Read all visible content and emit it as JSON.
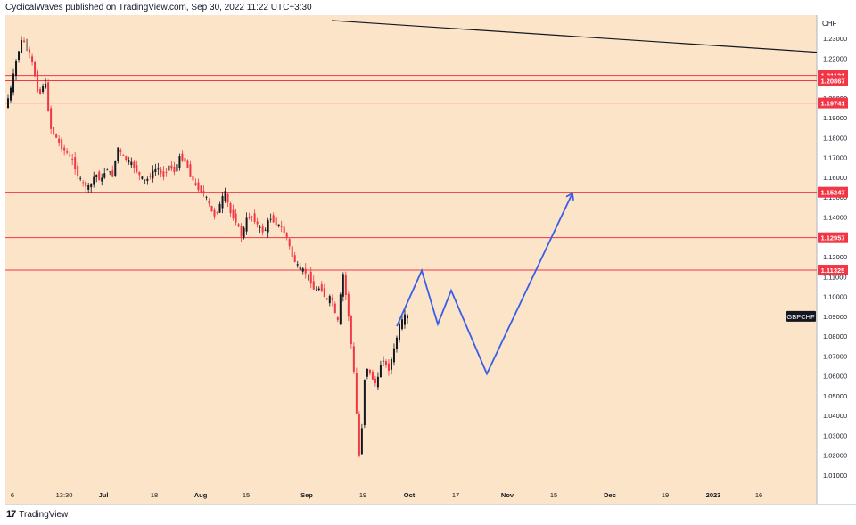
{
  "header": {
    "published_text": "CyclicalWaves published on TradingView.com, Sep 30, 2022 11:22 UTC+3:30"
  },
  "footer": {
    "brand": "TradingView",
    "logo_glyph": "17"
  },
  "colors": {
    "plot_background": "#fbe4c8",
    "level_line": "#f23645",
    "candle_up": "#131722",
    "candle_down": "#f23645",
    "projection": "#3b5ee8",
    "trendline": "#131722",
    "axis_text": "#131722"
  },
  "chart_data": {
    "type": "candlestick",
    "symbol": "GBPCHF",
    "currency": "CHF",
    "ylim": [
      1.0,
      1.24
    ],
    "y_ticks": [
      "1.23000",
      "1.22000",
      "1.21000",
      "1.20000",
      "1.19000",
      "1.18000",
      "1.17000",
      "1.16000",
      "1.15000",
      "1.14000",
      "1.13000",
      "1.12000",
      "1.11000",
      "1.10000",
      "1.09000",
      "1.08000",
      "1.07000",
      "1.06000",
      "1.05000",
      "1.04000",
      "1.03000",
      "1.02000",
      "1.01000"
    ],
    "x_ticks": [
      "6",
      "13:30",
      "Jul",
      "18",
      "Aug",
      "15",
      "Sep",
      "19",
      "Oct",
      "17",
      "Nov",
      "15",
      "Dec",
      "19",
      "2023",
      "16"
    ],
    "horizontal_levels": [
      "1.21131",
      "1.20867",
      "1.19741",
      "1.15247",
      "1.12957",
      "1.11325"
    ],
    "last_price_label": "GBPCHF",
    "price_path": [
      1.195,
      1.205,
      1.22,
      1.23,
      1.225,
      1.215,
      1.2,
      1.21,
      1.185,
      1.18,
      1.175,
      1.172,
      1.168,
      1.16,
      1.156,
      1.155,
      1.162,
      1.158,
      1.165,
      1.16,
      1.175,
      1.17,
      1.168,
      1.165,
      1.16,
      1.158,
      1.162,
      1.165,
      1.16,
      1.166,
      1.163,
      1.17,
      1.168,
      1.16,
      1.155,
      1.153,
      1.148,
      1.14,
      1.145,
      1.153,
      1.142,
      1.138,
      1.13,
      1.14,
      1.14,
      1.135,
      1.132,
      1.14,
      1.137,
      1.135,
      1.13,
      1.12,
      1.115,
      1.113,
      1.11,
      1.102,
      1.105,
      1.098,
      1.1,
      1.085,
      1.112,
      1.09,
      1.06,
      1.015,
      1.066,
      1.06,
      1.055,
      1.07,
      1.062,
      1.072,
      1.085,
      1.09
    ],
    "projection_path": [
      1.085,
      1.113,
      1.086,
      1.103,
      1.061,
      1.152
    ],
    "trendline": [
      1.239,
      1.223
    ]
  }
}
